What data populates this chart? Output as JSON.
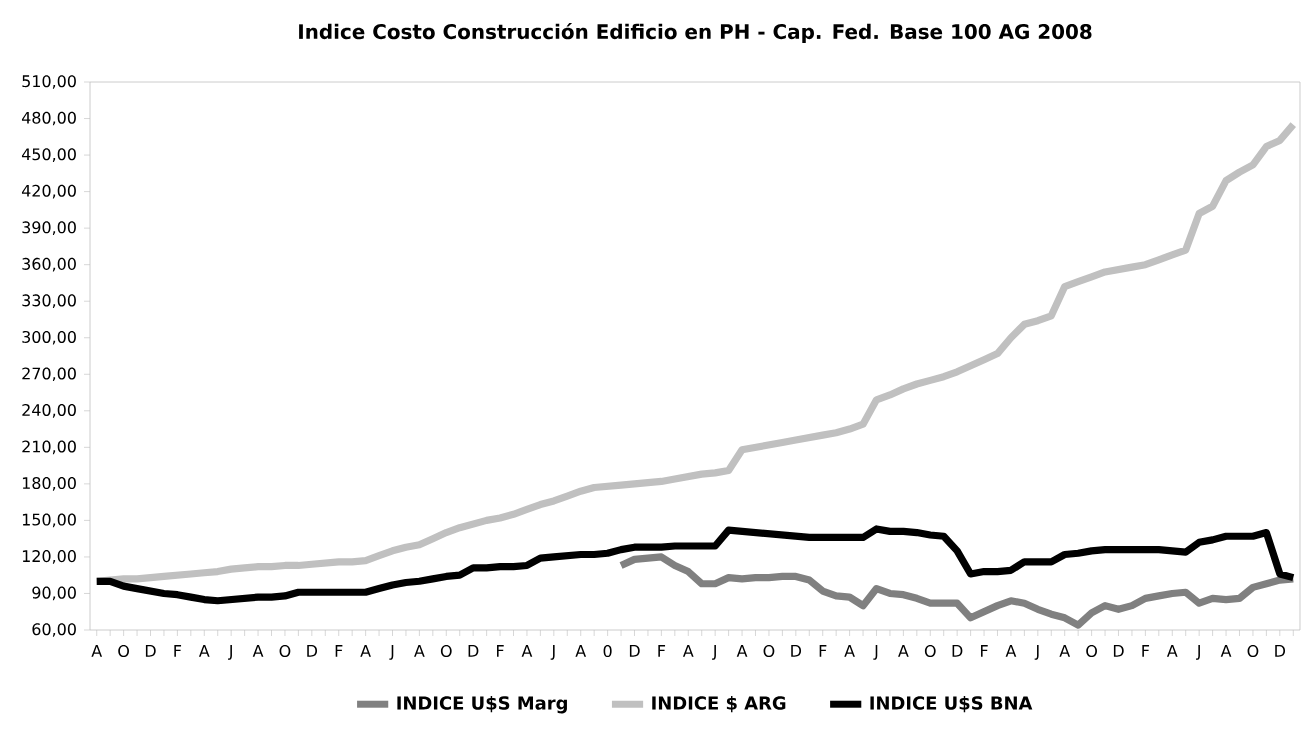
{
  "chart_data": {
    "type": "line",
    "title": "Indice Costo Construcción Edificio en PH - Cap. Fed. Base 100 AG 2008",
    "categories": [
      "A",
      null,
      "O",
      null,
      "D",
      null,
      "F",
      null,
      "A",
      null,
      "J",
      null,
      "A",
      null,
      "O",
      null,
      "D",
      null,
      "F",
      null,
      "A",
      null,
      "J",
      null,
      "A",
      null,
      "O",
      null,
      "D",
      null,
      "F",
      null,
      "A",
      null,
      "J",
      null,
      "A",
      null,
      "0",
      null,
      "D",
      null,
      "F",
      null,
      "A",
      null,
      "J",
      null,
      "A",
      null,
      "O",
      null,
      "D",
      null,
      "F",
      null,
      "A",
      null,
      "J",
      null,
      "A",
      null,
      "O",
      null,
      "D",
      null,
      "F",
      null,
      "A",
      null,
      "J",
      null,
      "A",
      null,
      "O",
      null,
      "D",
      null,
      "F",
      null,
      "A",
      null,
      "J",
      null,
      "A",
      null,
      "O",
      null,
      "D",
      null
    ],
    "series": [
      {
        "name": "INDICE U$S Marg",
        "color": "#808080",
        "values": [
          null,
          null,
          null,
          null,
          null,
          null,
          null,
          null,
          null,
          null,
          null,
          null,
          null,
          null,
          null,
          null,
          null,
          null,
          null,
          null,
          null,
          null,
          null,
          null,
          null,
          null,
          null,
          null,
          null,
          null,
          null,
          null,
          null,
          null,
          null,
          null,
          null,
          null,
          null,
          113,
          118,
          119,
          120,
          113,
          108,
          98,
          98,
          103,
          102,
          103,
          103,
          104,
          104,
          101,
          92,
          88,
          87,
          80,
          94,
          90,
          89,
          86,
          82,
          82,
          82,
          70,
          75,
          80,
          84,
          82,
          77,
          73,
          70,
          64,
          74,
          80,
          77,
          80,
          86,
          88,
          90,
          91,
          82,
          86,
          85,
          86,
          95,
          98,
          101,
          102
        ]
      },
      {
        "name": "INDICE $ ARG",
        "color": "#c0c0c0",
        "values": [
          100,
          101,
          102,
          102,
          103,
          104,
          105,
          106,
          107,
          108,
          110,
          111,
          112,
          112,
          113,
          113,
          114,
          115,
          116,
          116,
          117,
          121,
          125,
          128,
          130,
          135,
          140,
          144,
          147,
          150,
          152,
          155,
          159,
          163,
          166,
          170,
          174,
          177,
          178,
          179,
          180,
          181,
          182,
          184,
          186,
          188,
          189,
          191,
          208,
          210,
          212,
          214,
          216,
          218,
          220,
          222,
          225,
          229,
          249,
          253,
          258,
          262,
          265,
          268,
          272,
          277,
          282,
          287,
          300,
          311,
          314,
          318,
          342,
          346,
          350,
          354,
          356,
          358,
          360,
          364,
          368,
          372,
          402,
          408,
          429,
          436,
          442,
          457,
          462,
          475
        ]
      },
      {
        "name": "INDICE U$S BNA",
        "color": "#000000",
        "values": [
          100,
          100,
          96,
          94,
          92,
          90,
          89,
          87,
          85,
          84,
          85,
          86,
          87,
          87,
          88,
          91,
          91,
          91,
          91,
          91,
          91,
          94,
          97,
          99,
          100,
          102,
          104,
          105,
          111,
          111,
          112,
          112,
          113,
          119,
          120,
          121,
          122,
          122,
          123,
          126,
          128,
          128,
          128,
          129,
          129,
          129,
          129,
          142,
          141,
          140,
          139,
          138,
          137,
          136,
          136,
          136,
          136,
          136,
          143,
          141,
          141,
          140,
          138,
          137,
          125,
          106,
          108,
          108,
          109,
          116,
          116,
          116,
          122,
          123,
          125,
          126,
          126,
          126,
          126,
          126,
          125,
          124,
          132,
          134,
          137,
          137,
          137,
          140,
          106,
          103
        ]
      }
    ],
    "ylim": [
      60,
      510
    ],
    "yticks": [
      {
        "value": 60,
        "label": "60,00"
      },
      {
        "value": 90,
        "label": "90,00"
      },
      {
        "value": 120,
        "label": "120,00"
      },
      {
        "value": 150,
        "label": "150,00"
      },
      {
        "value": 180,
        "label": "180,00"
      },
      {
        "value": 210,
        "label": "210,00"
      },
      {
        "value": 240,
        "label": "240,00"
      },
      {
        "value": 270,
        "label": "270,00"
      },
      {
        "value": 300,
        "label": "300,00"
      },
      {
        "value": 330,
        "label": "330,00"
      },
      {
        "value": 360,
        "label": "360,00"
      },
      {
        "value": 390,
        "label": "390,00"
      },
      {
        "value": 420,
        "label": "420,00"
      },
      {
        "value": 450,
        "label": "450,00"
      },
      {
        "value": 480,
        "label": "480,00"
      },
      {
        "value": 510,
        "label": "510,00"
      }
    ],
    "legend": "bottom"
  }
}
